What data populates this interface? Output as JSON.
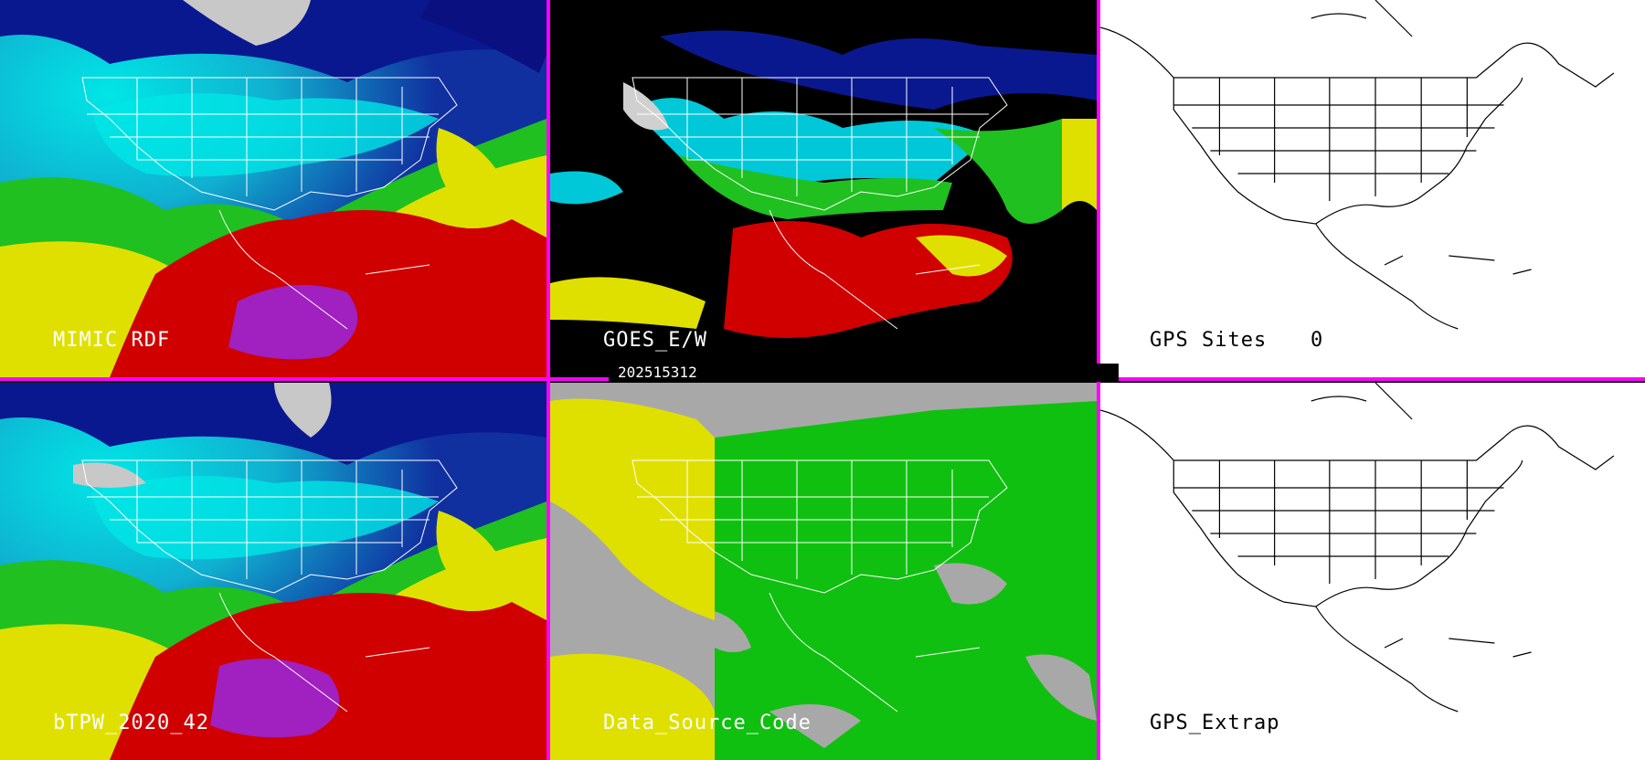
{
  "panels": [
    {
      "id": "mimic",
      "label": "MIMIC RDF"
    },
    {
      "id": "goes",
      "label": "GOES_E/W"
    },
    {
      "id": "gps_sites",
      "label": "GPS Sites",
      "count": "0"
    },
    {
      "id": "btpw",
      "label": "bTPW_2020_42"
    },
    {
      "id": "dsc",
      "label": "Data_Source_Code"
    },
    {
      "id": "gps_extrap",
      "label": "GPS_Extrap"
    }
  ],
  "timestamp": "202515312",
  "colors": {
    "separator": "#ff00ff",
    "tpw_low": "#1010a0",
    "tpw_mid": "#00e0e0",
    "tpw_green": "#20c020",
    "tpw_yellow": "#e0e000",
    "tpw_red": "#d00000",
    "tpw_max": "#a020c0",
    "dsc_gray": "#a8a8a8",
    "dsc_green": "#10c010",
    "dsc_yellow": "#e0e000"
  }
}
